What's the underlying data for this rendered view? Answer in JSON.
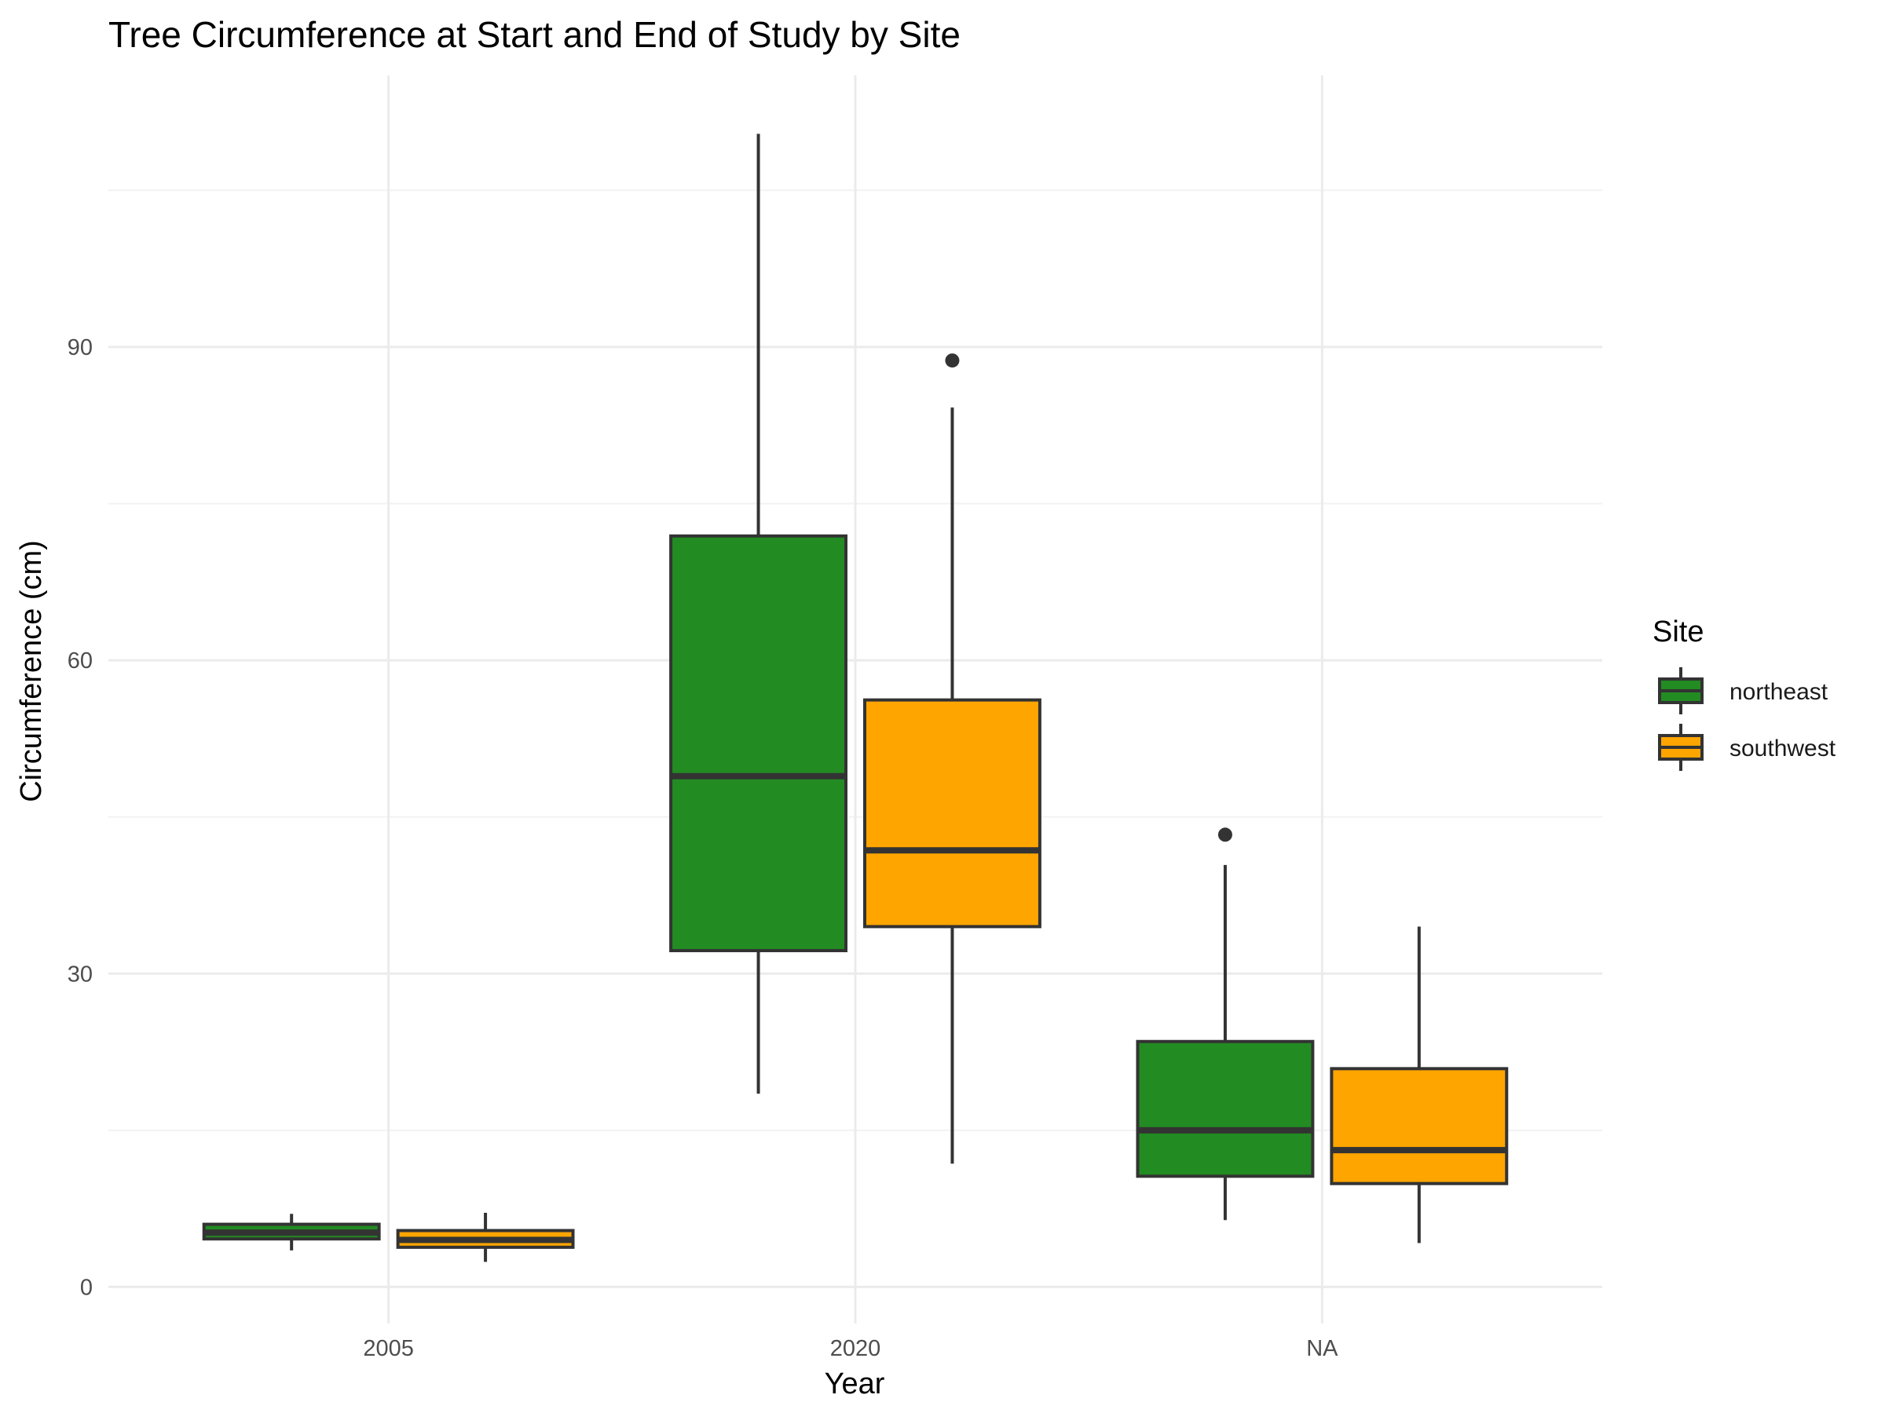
{
  "chart_data": {
    "type": "boxplot",
    "title": "Tree Circumference at Start and End of Study by Site",
    "xlabel": "Year",
    "ylabel": "Circumference (cm)",
    "categories": [
      "2005",
      "2020",
      "NA"
    ],
    "ylim": [
      -3.5,
      116
    ],
    "yticks": [
      0,
      30,
      60,
      90
    ],
    "grid": true,
    "legend": {
      "title": "Site",
      "position": "right",
      "entries": [
        "northeast",
        "southwest"
      ]
    },
    "colors": {
      "northeast": "#228B22",
      "southwest": "#FFA500",
      "outline": "#333333"
    },
    "series": [
      {
        "name": "northeast",
        "boxes": [
          {
            "category": "2005",
            "min": 3.5,
            "q1": 4.6,
            "median": 5.2,
            "q3": 6.0,
            "max": 7.0,
            "outliers": []
          },
          {
            "category": "2020",
            "min": 18.5,
            "q1": 32.2,
            "median": 48.9,
            "q3": 71.9,
            "max": 110.4,
            "outliers": []
          },
          {
            "category": "NA",
            "min": 6.4,
            "q1": 10.6,
            "median": 15.0,
            "q3": 23.5,
            "max": 40.4,
            "outliers": [
              43.3
            ]
          }
        ]
      },
      {
        "name": "southwest",
        "boxes": [
          {
            "category": "2005",
            "min": 2.4,
            "q1": 3.8,
            "median": 4.5,
            "q3": 5.4,
            "max": 7.1,
            "outliers": []
          },
          {
            "category": "2020",
            "min": 11.8,
            "q1": 34.5,
            "median": 41.8,
            "q3": 56.2,
            "max": 84.2,
            "outliers": [
              88.7
            ]
          },
          {
            "category": "NA",
            "min": 4.2,
            "q1": 9.9,
            "median": 13.1,
            "q3": 20.9,
            "max": 34.5,
            "outliers": []
          }
        ]
      }
    ]
  }
}
